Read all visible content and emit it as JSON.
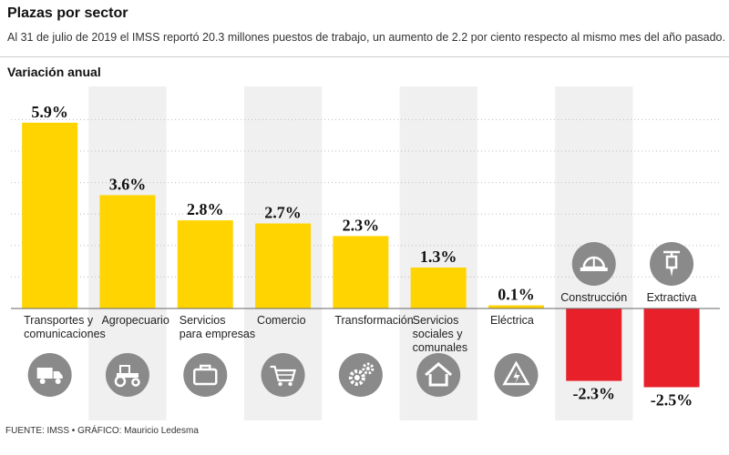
{
  "header": {
    "title": "Plazas por sector",
    "subtitle": "Al 31 de julio de 2019 el IMSS reportó 20.3 millones puestos de trabajo, un aumento de 2.2 por ciento respecto al mismo mes del año pasado.",
    "section": "Variación anual"
  },
  "footer": {
    "source": "FUENTE: IMSS • GRÁFICO: Mauricio Ledesma"
  },
  "colors": {
    "positive": "#FFD400",
    "negative": "#E8202A",
    "band": "#F0F0F0",
    "icon": "#8A8A8A"
  },
  "chart_data": {
    "type": "bar",
    "title": "Variación anual",
    "unit": "%",
    "categories": [
      [
        "Transportes y",
        "comunicaciones"
      ],
      [
        "Agropecuario"
      ],
      [
        "Servicios",
        "para empresas"
      ],
      [
        "Comercio"
      ],
      [
        "Transformación"
      ],
      [
        "Servicios",
        "sociales y",
        "comunales"
      ],
      [
        "Eléctrica"
      ],
      [
        "Construcción"
      ],
      [
        "Extractiva"
      ]
    ],
    "values": [
      5.9,
      3.6,
      2.8,
      2.7,
      2.3,
      1.3,
      0.1,
      -2.3,
      -2.5
    ],
    "labels": [
      "5.9%",
      "3.6%",
      "2.8%",
      "2.7%",
      "2.3%",
      "1.3%",
      "0.1%",
      "-2.3%",
      "-2.5%"
    ],
    "icons": [
      "truck-icon",
      "tractor-icon",
      "briefcase-icon",
      "shopping-cart-icon",
      "gears-icon",
      "house-icon",
      "electricity-icon",
      "hard-hat-icon",
      "drill-icon"
    ],
    "ylim": [
      -2.5,
      5.9
    ]
  }
}
